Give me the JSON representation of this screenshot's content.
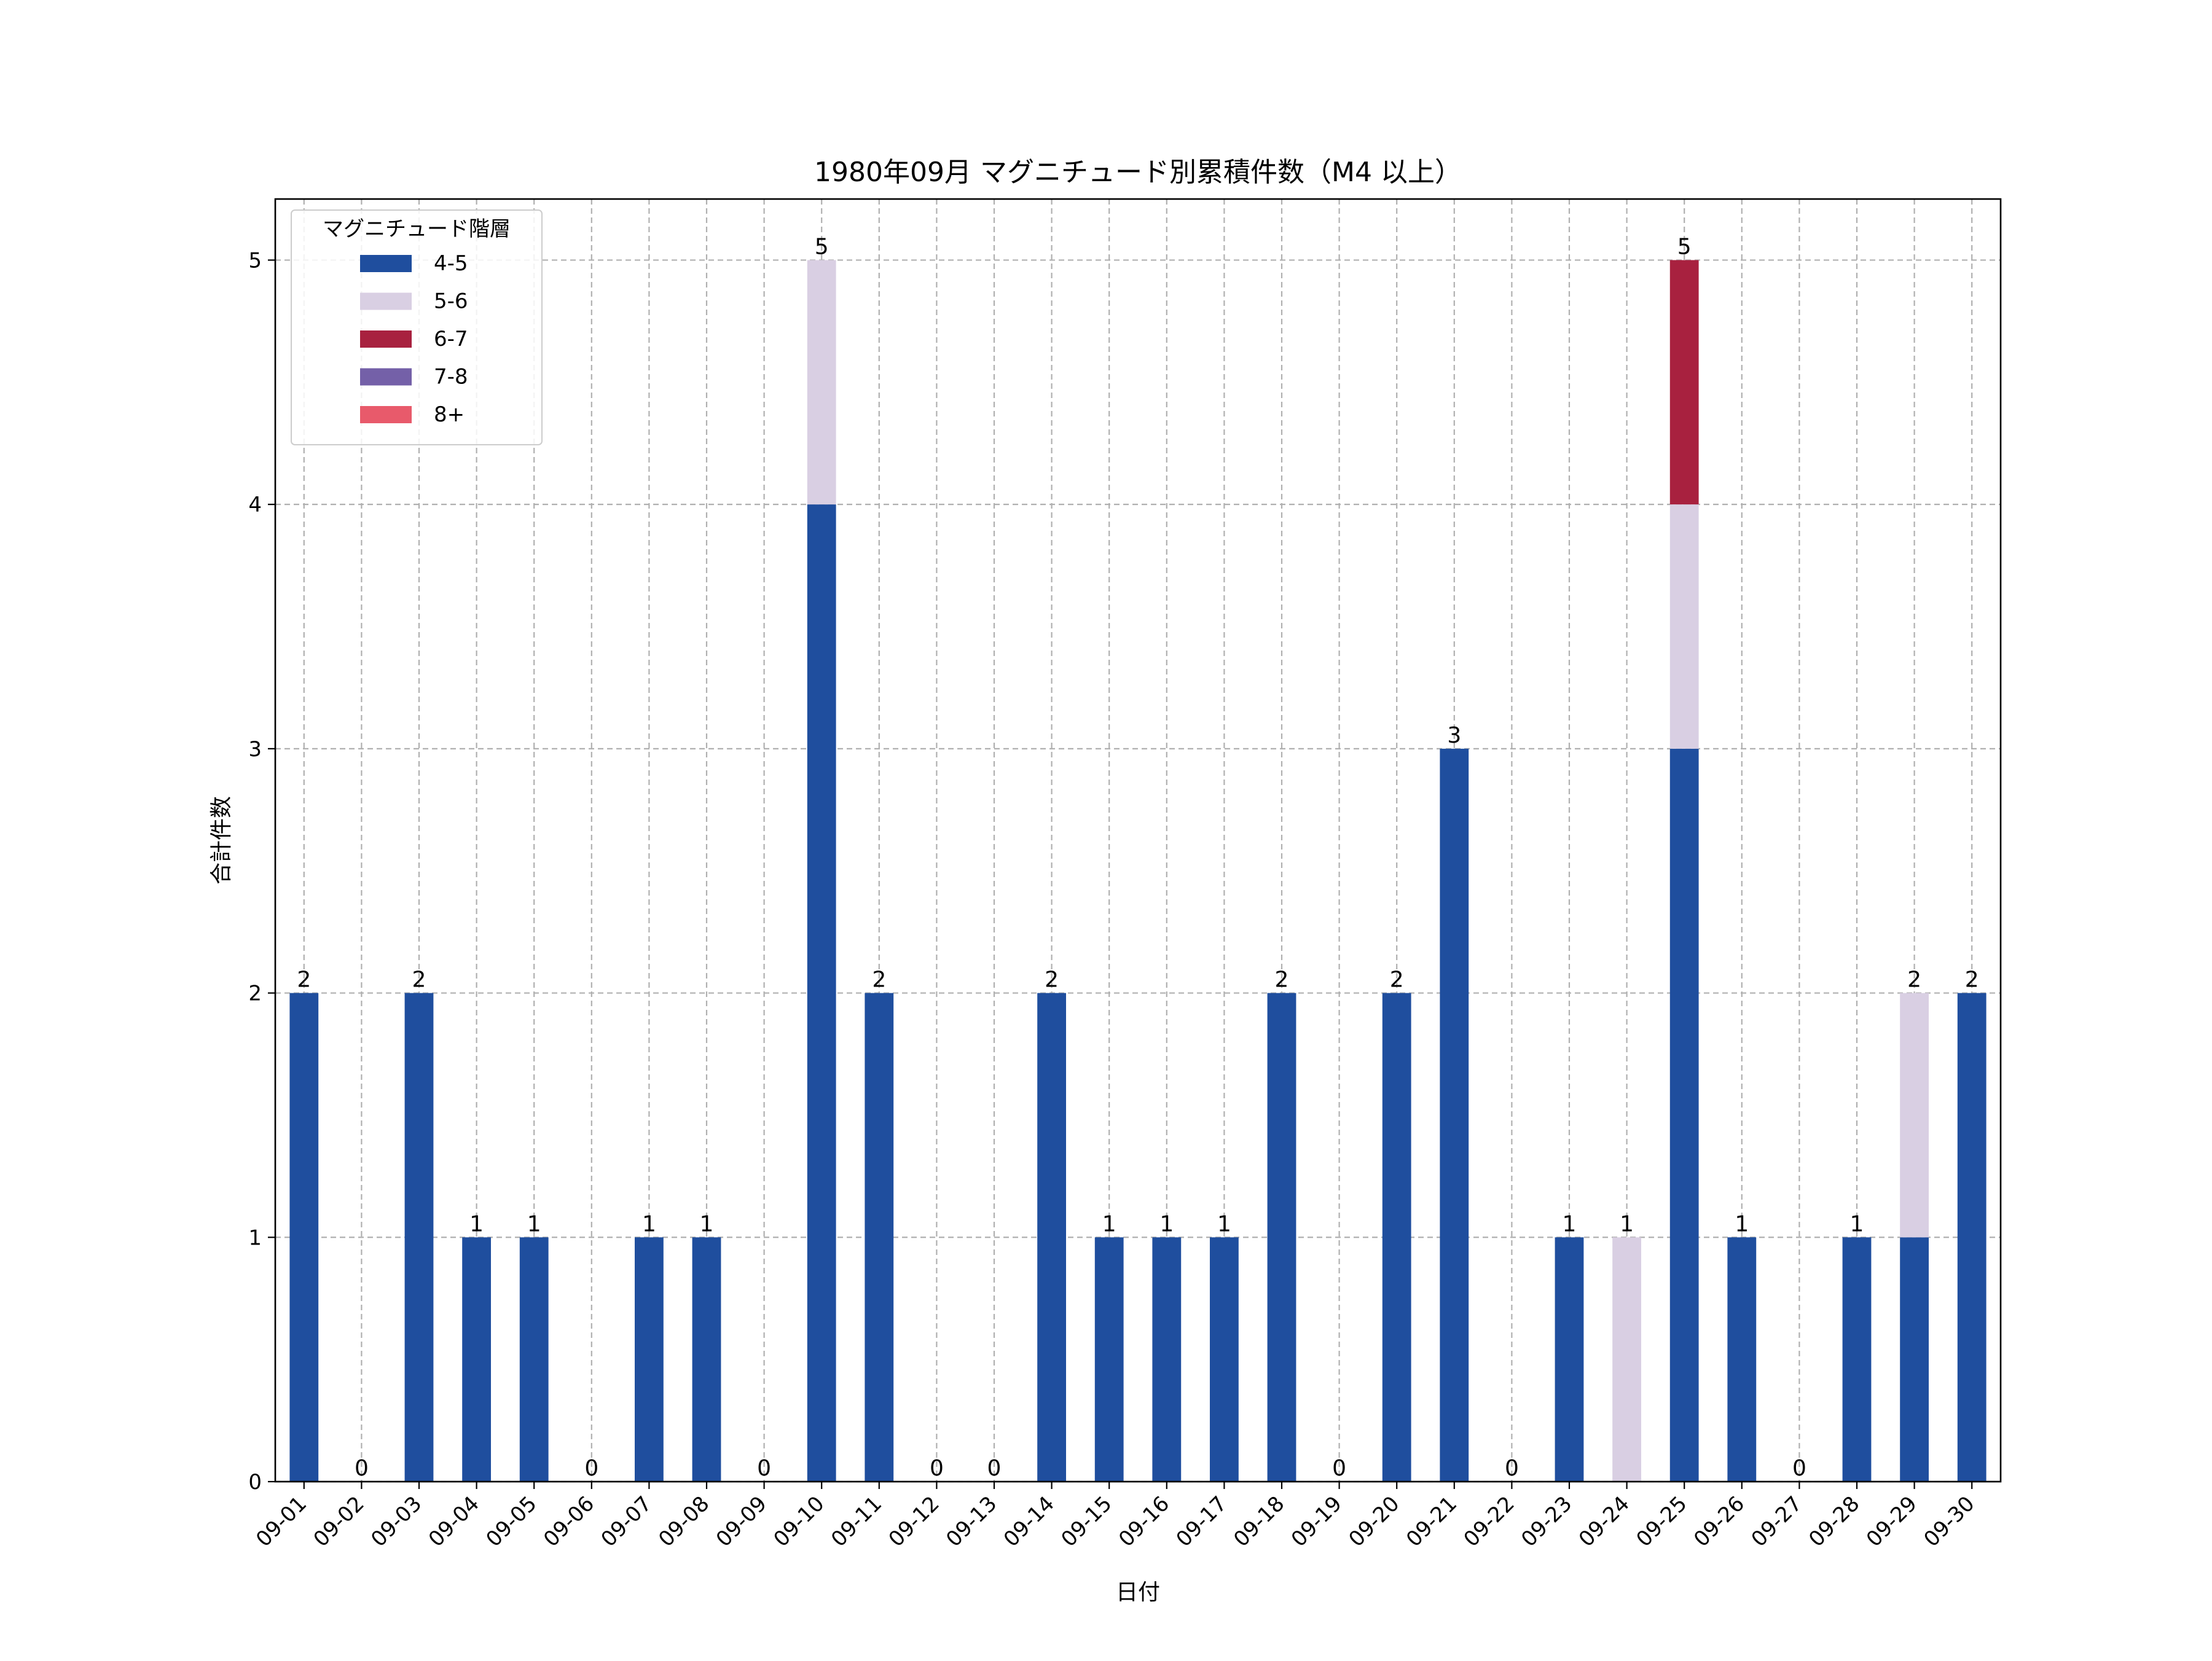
{
  "chart_data": {
    "type": "bar",
    "stacked": true,
    "title": "1980年09月 マグニチュード別累積件数（M4 以上）",
    "xlabel": "日付",
    "ylabel": "合計件数",
    "ylim": [
      0,
      5.25
    ],
    "yticks": [
      0,
      1,
      2,
      3,
      4,
      5
    ],
    "grid": true,
    "legend": {
      "title": "マグニチュード階層",
      "placement": "top-left"
    },
    "categories": [
      "09-01",
      "09-02",
      "09-03",
      "09-04",
      "09-05",
      "09-06",
      "09-07",
      "09-08",
      "09-09",
      "09-10",
      "09-11",
      "09-12",
      "09-13",
      "09-14",
      "09-15",
      "09-16",
      "09-17",
      "09-18",
      "09-19",
      "09-20",
      "09-21",
      "09-22",
      "09-23",
      "09-24",
      "09-25",
      "09-26",
      "09-27",
      "09-28",
      "09-29",
      "09-30"
    ],
    "series": [
      {
        "name": "4-5",
        "color": "#1f4e9e",
        "values": [
          2,
          0,
          2,
          1,
          1,
          0,
          1,
          1,
          0,
          4,
          2,
          0,
          0,
          2,
          1,
          1,
          1,
          2,
          0,
          2,
          3,
          0,
          1,
          0,
          3,
          1,
          0,
          1,
          1,
          2
        ]
      },
      {
        "name": "5-6",
        "color": "#d9cfe3",
        "values": [
          0,
          0,
          0,
          0,
          0,
          0,
          0,
          0,
          0,
          1,
          0,
          0,
          0,
          0,
          0,
          0,
          0,
          0,
          0,
          0,
          0,
          0,
          0,
          1,
          1,
          0,
          0,
          0,
          1,
          0
        ]
      },
      {
        "name": "6-7",
        "color": "#a8213f",
        "values": [
          0,
          0,
          0,
          0,
          0,
          0,
          0,
          0,
          0,
          0,
          0,
          0,
          0,
          0,
          0,
          0,
          0,
          0,
          0,
          0,
          0,
          0,
          0,
          0,
          1,
          0,
          0,
          0,
          0,
          0
        ]
      },
      {
        "name": "7-8",
        "color": "#7460a8",
        "values": [
          0,
          0,
          0,
          0,
          0,
          0,
          0,
          0,
          0,
          0,
          0,
          0,
          0,
          0,
          0,
          0,
          0,
          0,
          0,
          0,
          0,
          0,
          0,
          0,
          0,
          0,
          0,
          0,
          0,
          0
        ]
      },
      {
        "name": "8+",
        "color": "#e85a6b",
        "values": [
          0,
          0,
          0,
          0,
          0,
          0,
          0,
          0,
          0,
          0,
          0,
          0,
          0,
          0,
          0,
          0,
          0,
          0,
          0,
          0,
          0,
          0,
          0,
          0,
          0,
          0,
          0,
          0,
          0,
          0
        ]
      }
    ],
    "totals": [
      2,
      0,
      2,
      1,
      1,
      0,
      1,
      1,
      0,
      5,
      2,
      0,
      0,
      2,
      1,
      1,
      1,
      2,
      0,
      2,
      3,
      0,
      1,
      1,
      5,
      1,
      0,
      1,
      2,
      2
    ]
  }
}
